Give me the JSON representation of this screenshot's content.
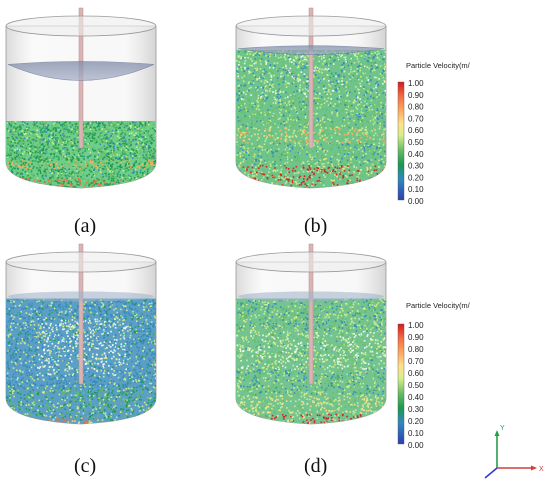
{
  "panels": [
    {
      "label": "(a)",
      "fill_level": 0.55,
      "lid_level": 0.18,
      "lid_sag": 16,
      "profile": "a"
    },
    {
      "label": "(b)",
      "fill_level": 0.1,
      "lid_level": 0.08,
      "lid_sag": 6,
      "profile": "b"
    },
    {
      "label": "(c)",
      "fill_level": 0.18,
      "lid_level": 0.18,
      "lid_sag": 0,
      "profile": "c"
    },
    {
      "label": "(d)",
      "fill_level": 0.18,
      "lid_level": 0.18,
      "lid_sag": 0,
      "profile": "d"
    }
  ],
  "colorbars": [
    {
      "title": "Particle Velocity(m/",
      "ticks": [
        "1.00",
        "0.90",
        "0.80",
        "0.70",
        "0.60",
        "0.50",
        "0.40",
        "0.30",
        "0.20",
        "0.10",
        "0.00"
      ]
    },
    {
      "title": "Particle Velocity(m/",
      "ticks": [
        "1.00",
        "0.90",
        "0.80",
        "0.70",
        "0.60",
        "0.50",
        "0.40",
        "0.30",
        "0.20",
        "0.10",
        "0.00"
      ]
    }
  ],
  "axes_triad": {
    "x_label": "X",
    "y_label": "Y",
    "x_color": "#d23c3c",
    "y_color": "#2a9c4a",
    "z_color": "#3a3ad0"
  },
  "colors": {
    "vessel_wall": "#c9c9c9",
    "shaft": "#d9b4b4",
    "colorbar_stops": [
      "#d7191c",
      "#f46d43",
      "#fdae61",
      "#fee08b",
      "#d9ef8b",
      "#66bd63",
      "#1a9850",
      "#3288bd",
      "#2b3fb0"
    ]
  }
}
